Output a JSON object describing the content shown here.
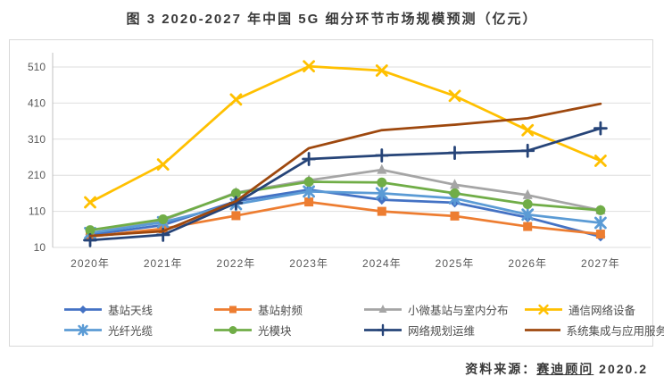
{
  "title": "图 3 2020-2027 年中国 5G 细分环节市场规模预测（亿元）",
  "source": {
    "prefix": "资料来源：",
    "name": "赛迪顾问",
    "date": "2020.2"
  },
  "colors": {
    "panel_border": "#d9d9d9",
    "gridline": "#dedede",
    "axis_line": "#c0c0c0",
    "axis_text": "#595959",
    "title_text": "#383838",
    "legend_text": "#4d4d4d"
  },
  "chart_data": {
    "type": "line",
    "title": "图 3 2020-2027 年中国 5G 细分环节市场规模预测（亿元）",
    "unit": "亿元",
    "categories": [
      "2020年",
      "2021年",
      "2022年",
      "2023年",
      "2024年",
      "2025年",
      "2026年",
      "2027年"
    ],
    "ylim": [
      10,
      510
    ],
    "yticks": [
      10,
      110,
      210,
      310,
      410,
      510
    ],
    "grid": "horizontal",
    "legend_position": "bottom",
    "series": [
      {
        "name": "基站天线",
        "color": "#4472C4",
        "marker": "diamond",
        "values": [
          45,
          72,
          138,
          170,
          142,
          134,
          93,
          40
        ]
      },
      {
        "name": "基站射频",
        "color": "#ED7D31",
        "marker": "square",
        "values": [
          40,
          62,
          98,
          136,
          110,
          97,
          68,
          47
        ]
      },
      {
        "name": "小微基站与室内分布",
        "color": "#A5A5A5",
        "marker": "triangle",
        "values": [
          50,
          85,
          162,
          196,
          225,
          184,
          155,
          113
        ]
      },
      {
        "name": "通信网络设备",
        "color": "#FFC000",
        "marker": "x",
        "values": [
          135,
          240,
          420,
          512,
          500,
          430,
          335,
          250
        ]
      },
      {
        "name": "光纤光缆",
        "color": "#5B9BD5",
        "marker": "asterisk",
        "values": [
          50,
          80,
          130,
          165,
          160,
          146,
          101,
          78
        ]
      },
      {
        "name": "光模块",
        "color": "#70AD47",
        "marker": "circle",
        "values": [
          58,
          88,
          160,
          192,
          190,
          160,
          130,
          113
        ]
      },
      {
        "name": "网络规划运维",
        "color": "#264478",
        "marker": "plus",
        "values": [
          30,
          45,
          133,
          255,
          265,
          272,
          278,
          340
        ]
      },
      {
        "name": "系统集成与应用服务",
        "color": "#9E480E",
        "marker": "none",
        "values": [
          42,
          55,
          138,
          285,
          335,
          350,
          368,
          408
        ]
      }
    ]
  }
}
